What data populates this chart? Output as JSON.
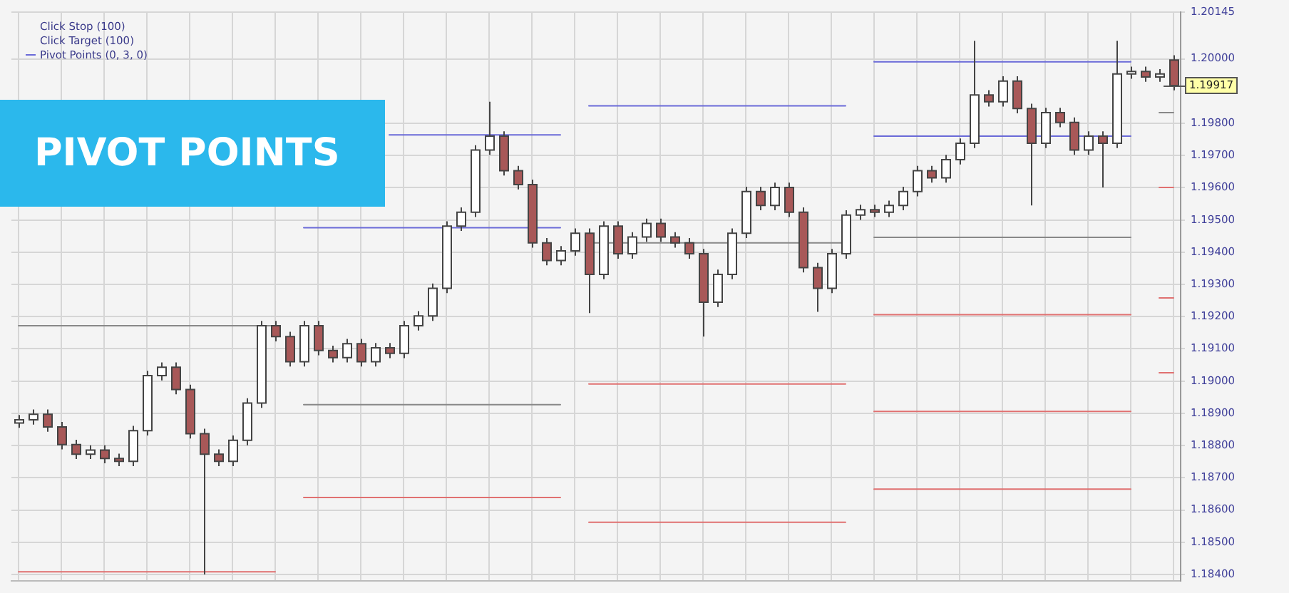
{
  "chart_data": {
    "type": "candlestick",
    "title": "PIVOT POINTS",
    "annotations": [
      "Click Stop (100)",
      "Click Target (100)"
    ],
    "ref_lines": [
      {
        "axis": "y",
        "value": 1.19917,
        "label": "1.19917",
        "color": "#555555"
      }
    ],
    "categories": [
      null,
      null,
      null,
      null,
      null,
      null,
      null,
      null,
      null,
      null,
      null,
      null,
      null,
      null,
      null,
      null,
      null,
      null,
      null,
      null,
      null,
      null,
      null,
      null,
      null,
      null,
      null,
      null,
      null,
      null,
      null,
      null,
      null,
      null,
      null,
      null,
      null,
      null,
      null,
      null,
      null,
      null,
      null,
      null,
      null,
      null,
      null,
      null,
      null,
      null,
      null,
      null,
      null,
      null,
      null,
      null,
      null,
      null,
      null,
      null,
      null,
      null,
      null,
      null,
      null,
      null,
      null,
      null,
      null,
      null,
      null,
      null,
      null,
      null,
      null,
      null,
      null,
      null,
      null,
      null,
      null,
      null
    ],
    "ohlc": [
      [
        1.1887,
        1.18895,
        1.18855,
        1.1888
      ],
      [
        1.1888,
        1.18912,
        1.18865,
        1.18897
      ],
      [
        1.18897,
        1.18912,
        1.18843,
        1.18858
      ],
      [
        1.18858,
        1.18873,
        1.18788,
        1.18803
      ],
      [
        1.18803,
        1.18818,
        1.18758,
        1.18773
      ],
      [
        1.18773,
        1.18801,
        1.18758,
        1.18786
      ],
      [
        1.18786,
        1.18801,
        1.18745,
        1.1876
      ],
      [
        1.1876,
        1.18775,
        1.18736,
        1.18751
      ],
      [
        1.18751,
        1.18861,
        1.18736,
        1.18846
      ],
      [
        1.18846,
        1.19032,
        1.18831,
        1.19017
      ],
      [
        1.19017,
        1.19058,
        1.19002,
        1.19043
      ],
      [
        1.19043,
        1.19058,
        1.18959,
        1.18974
      ],
      [
        1.18974,
        1.18989,
        1.18822,
        1.18837
      ],
      [
        1.18837,
        1.18852,
        1.184,
        1.18773
      ],
      [
        1.18773,
        1.18788,
        1.18736,
        1.18751
      ],
      [
        1.18751,
        1.18831,
        1.18736,
        1.18816
      ],
      [
        1.18816,
        1.18947,
        1.18801,
        1.18932
      ],
      [
        1.18932,
        1.19187,
        1.18917,
        1.19172
      ],
      [
        1.19172,
        1.19187,
        1.19123,
        1.19138
      ],
      [
        1.19138,
        1.19153,
        1.19045,
        1.1906
      ],
      [
        1.1906,
        1.19187,
        1.19045,
        1.19172
      ],
      [
        1.19172,
        1.19187,
        1.1908,
        1.19095
      ],
      [
        1.19095,
        1.1911,
        1.19058,
        1.19073
      ],
      [
        1.19073,
        1.19131,
        1.19058,
        1.19116
      ],
      [
        1.19116,
        1.19131,
        1.19045,
        1.1906
      ],
      [
        1.1906,
        1.19118,
        1.19045,
        1.19103
      ],
      [
        1.19103,
        1.19118,
        1.19071,
        1.19086
      ],
      [
        1.19086,
        1.19187,
        1.19071,
        1.19172
      ],
      [
        1.19172,
        1.19217,
        1.19157,
        1.19202
      ],
      [
        1.19202,
        1.19303,
        1.19187,
        1.19288
      ],
      [
        1.19288,
        1.19496,
        1.19273,
        1.19481
      ],
      [
        1.19481,
        1.19539,
        1.19466,
        1.19524
      ],
      [
        1.19524,
        1.19732,
        1.19509,
        1.19717
      ],
      [
        1.19717,
        1.19867,
        1.19702,
        1.1976
      ],
      [
        1.1976,
        1.19775,
        1.19638,
        1.19653
      ],
      [
        1.19653,
        1.19668,
        1.19595,
        1.1961
      ],
      [
        1.1961,
        1.19625,
        1.19414,
        1.19429
      ],
      [
        1.19429,
        1.19444,
        1.19359,
        1.19374
      ],
      [
        1.19374,
        1.19419,
        1.19359,
        1.19404
      ],
      [
        1.19404,
        1.19474,
        1.19389,
        1.19459
      ],
      [
        1.19459,
        1.19474,
        1.19211,
        1.19331
      ],
      [
        1.19331,
        1.19496,
        1.19316,
        1.19481
      ],
      [
        1.19481,
        1.19496,
        1.1938,
        1.19395
      ],
      [
        1.19395,
        1.19462,
        1.1938,
        1.19447
      ],
      [
        1.19447,
        1.19504,
        1.19432,
        1.19489
      ],
      [
        1.19489,
        1.19504,
        1.19432,
        1.19447
      ],
      [
        1.19447,
        1.19462,
        1.19414,
        1.19429
      ],
      [
        1.19429,
        1.19444,
        1.1938,
        1.19395
      ],
      [
        1.19395,
        1.1941,
        1.19138,
        1.19245
      ],
      [
        1.19245,
        1.19346,
        1.1923,
        1.19331
      ],
      [
        1.19331,
        1.19474,
        1.19316,
        1.19459
      ],
      [
        1.19459,
        1.19603,
        1.19444,
        1.19588
      ],
      [
        1.19588,
        1.19603,
        1.1953,
        1.19545
      ],
      [
        1.19545,
        1.19616,
        1.1953,
        1.19601
      ],
      [
        1.19601,
        1.19616,
        1.19509,
        1.19524
      ],
      [
        1.19524,
        1.19539,
        1.19337,
        1.19352
      ],
      [
        1.19352,
        1.19367,
        1.19215,
        1.19288
      ],
      [
        1.19288,
        1.1941,
        1.19273,
        1.19395
      ],
      [
        1.19395,
        1.1953,
        1.1938,
        1.19515
      ],
      [
        1.19515,
        1.19547,
        1.195,
        1.19532
      ],
      [
        1.19532,
        1.19547,
        1.19509,
        1.19524
      ],
      [
        1.19524,
        1.1956,
        1.19509,
        1.19545
      ],
      [
        1.19545,
        1.19603,
        1.1953,
        1.19588
      ],
      [
        1.19588,
        1.19668,
        1.19573,
        1.19653
      ],
      [
        1.19653,
        1.19668,
        1.19616,
        1.19631
      ],
      [
        1.19631,
        1.19702,
        1.19616,
        1.19687
      ],
      [
        1.19687,
        1.19753,
        1.19672,
        1.19738
      ],
      [
        1.19738,
        1.20056,
        1.19723,
        1.19888
      ],
      [
        1.19888,
        1.19903,
        1.19852,
        1.19867
      ],
      [
        1.19867,
        1.19946,
        1.19852,
        1.19931
      ],
      [
        1.19931,
        1.19946,
        1.19831,
        1.19846
      ],
      [
        1.19846,
        1.19861,
        1.19545,
        1.19738
      ],
      [
        1.19738,
        1.19848,
        1.19723,
        1.19833
      ],
      [
        1.19833,
        1.19848,
        1.19788,
        1.19803
      ],
      [
        1.19803,
        1.19818,
        1.19702,
        1.19717
      ],
      [
        1.19717,
        1.19775,
        1.19702,
        1.1976
      ],
      [
        1.1976,
        1.19775,
        1.19601,
        1.19738
      ],
      [
        1.19738,
        1.20056,
        1.19723,
        1.19953
      ],
      [
        1.19953,
        1.19976,
        1.19938,
        1.19961
      ],
      [
        1.19961,
        1.19976,
        1.19929,
        1.19944
      ],
      [
        1.19944,
        1.19968,
        1.19929,
        1.19953
      ],
      [
        1.19996,
        1.20011,
        1.19902,
        1.19917
      ]
    ],
    "color": "#444444",
    "colors": [
      "#ffffff",
      "#ffffff",
      "#a85858",
      "#a85858",
      "#a85858",
      "#ffffff",
      "#a85858",
      "#a85858",
      "#ffffff",
      "#ffffff",
      "#ffffff",
      "#a85858",
      "#a85858",
      "#a85858",
      "#a85858",
      "#ffffff",
      "#ffffff",
      "#ffffff",
      "#a85858",
      "#a85858",
      "#ffffff",
      "#a85858",
      "#a85858",
      "#ffffff",
      "#a85858",
      "#ffffff",
      "#a85858",
      "#ffffff",
      "#ffffff",
      "#ffffff",
      "#ffffff",
      "#ffffff",
      "#ffffff",
      "#ffffff",
      "#a85858",
      "#a85858",
      "#a85858",
      "#a85858",
      "#ffffff",
      "#ffffff",
      "#a85858",
      "#ffffff",
      "#a85858",
      "#ffffff",
      "#ffffff",
      "#a85858",
      "#a85858",
      "#a85858",
      "#a85858",
      "#ffffff",
      "#ffffff",
      "#ffffff",
      "#a85858",
      "#ffffff",
      "#a85858",
      "#a85858",
      "#a85858",
      "#ffffff",
      "#ffffff",
      "#ffffff",
      "#a85858",
      "#ffffff",
      "#ffffff",
      "#ffffff",
      "#a85858",
      "#ffffff",
      "#ffffff",
      "#ffffff",
      "#a85858",
      "#ffffff",
      "#a85858",
      "#a85858",
      "#ffffff",
      "#a85858",
      "#a85858",
      "#ffffff",
      "#a85858",
      "#ffffff",
      "#ffffff",
      "#a85858",
      "#ffffff",
      "#a85858"
    ],
    "series": [
      {
        "type": "line",
        "color": "#888888",
        "values": [
          1.19172,
          1.19172,
          1.19172,
          1.19172,
          1.19172,
          1.19172,
          1.19172,
          1.19172,
          1.19172,
          1.19172,
          1.19172,
          1.19172,
          1.19172,
          1.19172,
          1.19172,
          1.19172,
          1.19172,
          1.19172,
          1.19172,
          null,
          1.18927,
          1.18927,
          1.18927,
          1.18927,
          1.18927,
          1.18927,
          1.18927,
          1.18927,
          1.18927,
          1.18927,
          1.18927,
          1.18927,
          1.18927,
          1.18927,
          1.18927,
          1.18927,
          1.18927,
          1.18927,
          1.18927,
          null,
          1.19429,
          1.19429,
          1.19429,
          1.19429,
          1.19429,
          1.19429,
          1.19429,
          1.19429,
          1.19429,
          1.19429,
          1.19429,
          1.19429,
          1.19429,
          1.19429,
          1.19429,
          1.19429,
          1.19429,
          1.19429,
          1.19429,
          null,
          1.19446,
          1.19446,
          1.19446,
          1.19446,
          1.19446,
          1.19446,
          1.19446,
          1.19446,
          1.19446,
          1.19446,
          1.19446,
          1.19446,
          1.19446,
          1.19446,
          1.19446,
          1.19446,
          1.19446,
          1.19446,
          1.19446,
          null,
          1.19833,
          1.19833
        ]
      },
      {
        "type": "line",
        "name": "Pivot Points (0, 3, 0)",
        "color": "#6a6ad8",
        "values": [
          null,
          null,
          null,
          null,
          null,
          null,
          null,
          null,
          null,
          null,
          null,
          null,
          null,
          null,
          null,
          null,
          null,
          null,
          null,
          null,
          null,
          null,
          null,
          null,
          null,
          null,
          1.19764,
          1.19764,
          1.19764,
          1.19764,
          1.19764,
          1.19764,
          1.19764,
          1.19764,
          1.19764,
          1.19764,
          1.19764,
          1.19764,
          1.19764,
          null,
          1.19854,
          1.19854,
          1.19854,
          1.19854,
          1.19854,
          1.19854,
          1.19854,
          1.19854,
          1.19854,
          1.19854,
          1.19854,
          1.19854,
          1.19854,
          1.19854,
          1.19854,
          1.19854,
          1.19854,
          1.19854,
          1.19854,
          null,
          1.19991,
          1.19991,
          1.19991,
          1.19991,
          1.19991,
          1.19991,
          1.19991,
          1.19991,
          1.19991,
          1.19991,
          1.19991,
          1.19991,
          1.19991,
          1.19991,
          1.19991,
          1.19991,
          1.19991,
          1.19991,
          1.19991,
          null,
          null,
          null
        ]
      },
      {
        "type": "line",
        "color": "#6a6ad8",
        "values": [
          null,
          null,
          null,
          null,
          null,
          null,
          null,
          null,
          null,
          null,
          null,
          null,
          null,
          null,
          null,
          null,
          null,
          null,
          null,
          null,
          1.19476,
          1.19476,
          1.19476,
          1.19476,
          1.19476,
          1.19476,
          1.19476,
          1.19476,
          1.19476,
          1.19476,
          1.19476,
          1.19476,
          1.19476,
          1.19476,
          1.19476,
          1.19476,
          1.19476,
          1.19476,
          1.19476,
          null,
          null,
          null,
          null,
          null,
          null,
          null,
          null,
          null,
          null,
          null,
          null,
          null,
          null,
          null,
          null,
          null,
          null,
          null,
          null,
          null,
          1.1976,
          1.1976,
          1.1976,
          1.1976,
          1.1976,
          1.1976,
          1.1976,
          1.1976,
          1.1976,
          1.1976,
          1.1976,
          1.1976,
          1.1976,
          1.1976,
          1.1976,
          1.1976,
          1.1976,
          1.1976,
          1.1976,
          null,
          null,
          null
        ]
      },
      {
        "type": "line",
        "color": "#e07070",
        "values": [
          1.18408,
          1.18408,
          1.18408,
          1.18408,
          1.18408,
          1.18408,
          1.18408,
          1.18408,
          1.18408,
          1.18408,
          1.18408,
          1.18408,
          1.18408,
          1.18408,
          1.18408,
          1.18408,
          1.18408,
          1.18408,
          1.18408,
          null,
          1.18639,
          1.18639,
          1.18639,
          1.18639,
          1.18639,
          1.18639,
          1.18639,
          1.18639,
          1.18639,
          1.18639,
          1.18639,
          1.18639,
          1.18639,
          1.18639,
          1.18639,
          1.18639,
          1.18639,
          1.18639,
          1.18639,
          null,
          1.18991,
          1.18991,
          1.18991,
          1.18991,
          1.18991,
          1.18991,
          1.18991,
          1.18991,
          1.18991,
          1.18991,
          1.18991,
          1.18991,
          1.18991,
          1.18991,
          1.18991,
          1.18991,
          1.18991,
          1.18991,
          1.18991,
          null,
          1.19206,
          1.19206,
          1.19206,
          1.19206,
          1.19206,
          1.19206,
          1.19206,
          1.19206,
          1.19206,
          1.19206,
          1.19206,
          1.19206,
          1.19206,
          1.19206,
          1.19206,
          1.19206,
          1.19206,
          1.19206,
          1.19206,
          null,
          1.19601,
          1.19601
        ]
      },
      {
        "type": "line",
        "color": "#e07070",
        "values": [
          null,
          null,
          null,
          null,
          null,
          null,
          null,
          null,
          null,
          null,
          null,
          null,
          null,
          null,
          null,
          null,
          null,
          null,
          null,
          null,
          null,
          null,
          null,
          null,
          null,
          null,
          null,
          null,
          null,
          null,
          null,
          null,
          null,
          null,
          null,
          null,
          null,
          null,
          null,
          null,
          1.18562,
          1.18562,
          1.18562,
          1.18562,
          1.18562,
          1.18562,
          1.18562,
          1.18562,
          1.18562,
          1.18562,
          1.18562,
          1.18562,
          1.18562,
          1.18562,
          1.18562,
          1.18562,
          1.18562,
          1.18562,
          1.18562,
          null,
          1.18906,
          1.18906,
          1.18906,
          1.18906,
          1.18906,
          1.18906,
          1.18906,
          1.18906,
          1.18906,
          1.18906,
          1.18906,
          1.18906,
          1.18906,
          1.18906,
          1.18906,
          1.18906,
          1.18906,
          1.18906,
          1.18906,
          null,
          1.19258,
          1.19258
        ]
      },
      {
        "type": "line",
        "color": "#e07070",
        "values": [
          null,
          null,
          null,
          null,
          null,
          null,
          null,
          null,
          null,
          null,
          null,
          null,
          null,
          null,
          null,
          null,
          null,
          null,
          null,
          null,
          null,
          null,
          null,
          null,
          null,
          null,
          null,
          null,
          null,
          null,
          null,
          null,
          null,
          null,
          null,
          null,
          null,
          null,
          null,
          null,
          null,
          null,
          null,
          null,
          null,
          null,
          null,
          null,
          null,
          null,
          null,
          null,
          null,
          null,
          null,
          null,
          null,
          null,
          null,
          null,
          1.18665,
          1.18665,
          1.18665,
          1.18665,
          1.18665,
          1.18665,
          1.18665,
          1.18665,
          1.18665,
          1.18665,
          1.18665,
          1.18665,
          1.18665,
          1.18665,
          1.18665,
          1.18665,
          1.18665,
          1.18665,
          1.18665,
          null,
          1.19026,
          1.19026
        ]
      }
    ],
    "ylim": [
      1.1838,
      1.20145
    ],
    "yticks": [
      {
        "value": 1.184,
        "label": "1.18400"
      },
      {
        "value": 1.185,
        "label": "1.18500"
      },
      {
        "value": 1.186,
        "label": "1.18600"
      },
      {
        "value": 1.187,
        "label": "1.18700"
      },
      {
        "value": 1.188,
        "label": "1.18800"
      },
      {
        "value": 1.189,
        "label": "1.18900"
      },
      {
        "value": 1.19,
        "label": "1.19000"
      },
      {
        "value": 1.191,
        "label": "1.19100"
      },
      {
        "value": 1.192,
        "label": "1.19200"
      },
      {
        "value": 1.193,
        "label": "1.19300"
      },
      {
        "value": 1.194,
        "label": "1.19400"
      },
      {
        "value": 1.195,
        "label": "1.19500"
      },
      {
        "value": 1.196,
        "label": "1.19600"
      },
      {
        "value": 1.197,
        "label": "1.19700"
      },
      {
        "value": 1.198,
        "label": "1.19800"
      },
      {
        "value": 1.2,
        "label": "1.20000"
      },
      {
        "value": 1.20145,
        "label": "1.20145"
      }
    ],
    "grid": true,
    "legend": "top left",
    "tick_labels": "y",
    "marker": "none",
    "line_style": "solid"
  }
}
